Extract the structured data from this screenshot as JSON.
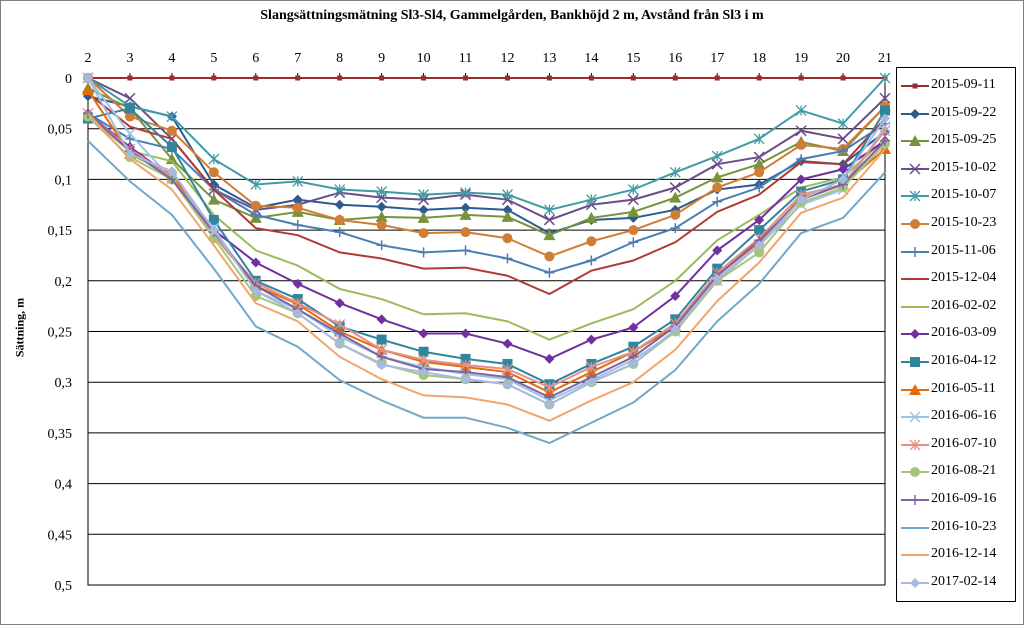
{
  "chart_data": {
    "type": "line",
    "title": "Slangsättningsmätning  Sl3-Sl4, Gammelgården,  Bankhöjd 2 m,  Avstånd från Sl3 i m",
    "xlabel": "",
    "ylabel": "Sättning, m",
    "x": [
      2,
      3,
      4,
      5,
      6,
      7,
      8,
      9,
      10,
      11,
      12,
      13,
      14,
      15,
      16,
      17,
      18,
      19,
      20,
      21
    ],
    "x_tick_labels": [
      "2",
      "3",
      "4",
      "5",
      "6",
      "7",
      "8",
      "9",
      "10",
      "11",
      "12",
      "13",
      "14",
      "15",
      "16",
      "17",
      "18",
      "19",
      "20",
      "21"
    ],
    "y_tick_labels": [
      "0",
      "0,05",
      "0,1",
      "0,15",
      "0,2",
      "0,25",
      "0,3",
      "0,35",
      "0,4",
      "0,45",
      "0,5"
    ],
    "ylim": [
      0,
      0.5
    ],
    "y_inverted": true,
    "x_axis_position": "top",
    "grid": "horizontal",
    "legend_position": "right",
    "series": [
      {
        "name": "2015-09-11",
        "color": "#9b2d2a",
        "marker": "square-small",
        "values": [
          0,
          0,
          0,
          0,
          0,
          0,
          0,
          0,
          0,
          0,
          0,
          0,
          0,
          0,
          0,
          0,
          0,
          0,
          0,
          0
        ]
      },
      {
        "name": "2015-09-22",
        "color": "#2e5b8f",
        "marker": "diamond",
        "values": [
          0.018,
          0.028,
          0.038,
          0.105,
          0.128,
          0.12,
          0.125,
          0.127,
          0.13,
          0.128,
          0.13,
          0.153,
          0.14,
          0.138,
          0.13,
          0.11,
          0.105,
          0.082,
          0.085,
          0.053
        ]
      },
      {
        "name": "2015-09-25",
        "color": "#77933c",
        "marker": "triangle",
        "values": [
          0.01,
          0.03,
          0.08,
          0.12,
          0.138,
          0.132,
          0.14,
          0.137,
          0.138,
          0.135,
          0.137,
          0.155,
          0.138,
          0.132,
          0.118,
          0.098,
          0.085,
          0.063,
          0.072,
          0.028
        ]
      },
      {
        "name": "2015-10-02",
        "color": "#6a4e8a",
        "marker": "x",
        "values": [
          0.0,
          0.02,
          0.06,
          0.11,
          0.13,
          0.125,
          0.113,
          0.118,
          0.12,
          0.115,
          0.12,
          0.14,
          0.125,
          0.12,
          0.108,
          0.085,
          0.078,
          0.052,
          0.06,
          0.02
        ]
      },
      {
        "name": "2015-10-07",
        "color": "#3f9ba6",
        "marker": "asterisk",
        "values": [
          0.0,
          0.028,
          0.038,
          0.08,
          0.105,
          0.102,
          0.11,
          0.112,
          0.115,
          0.113,
          0.115,
          0.13,
          0.12,
          0.11,
          0.093,
          0.077,
          0.06,
          0.032,
          0.045,
          0.0
        ]
      },
      {
        "name": "2015-10-23",
        "color": "#d07d35",
        "marker": "circle",
        "values": [
          0.0,
          0.038,
          0.052,
          0.093,
          0.126,
          0.128,
          0.14,
          0.145,
          0.153,
          0.152,
          0.158,
          0.176,
          0.161,
          0.15,
          0.135,
          0.108,
          0.093,
          0.066,
          0.07,
          0.028
        ]
      },
      {
        "name": "2015-11-06",
        "color": "#4a7eb5",
        "marker": "plus",
        "values": [
          0.035,
          0.06,
          0.07,
          0.11,
          0.135,
          0.145,
          0.152,
          0.165,
          0.172,
          0.17,
          0.178,
          0.192,
          0.18,
          0.162,
          0.148,
          0.122,
          0.108,
          0.08,
          0.072,
          0.045
        ]
      },
      {
        "name": "2015-12-04",
        "color": "#b03a36",
        "marker": "none",
        "values": [
          0.015,
          0.048,
          0.06,
          0.11,
          0.148,
          0.155,
          0.172,
          0.178,
          0.188,
          0.187,
          0.195,
          0.213,
          0.19,
          0.18,
          0.162,
          0.132,
          0.115,
          0.083,
          0.085,
          0.04
        ]
      },
      {
        "name": "2016-02-02",
        "color": "#9bbb59",
        "marker": "none",
        "values": [
          0.038,
          0.072,
          0.082,
          0.135,
          0.17,
          0.185,
          0.208,
          0.218,
          0.233,
          0.232,
          0.24,
          0.258,
          0.242,
          0.228,
          0.2,
          0.16,
          0.135,
          0.108,
          0.098,
          0.06
        ]
      },
      {
        "name": "2016-03-09",
        "color": "#7030a0",
        "marker": "diamond",
        "values": [
          0.035,
          0.068,
          0.098,
          0.15,
          0.182,
          0.203,
          0.222,
          0.238,
          0.252,
          0.252,
          0.262,
          0.277,
          0.258,
          0.246,
          0.215,
          0.17,
          0.14,
          0.1,
          0.09,
          0.062
        ]
      },
      {
        "name": "2016-04-12",
        "color": "#31859c",
        "marker": "square",
        "values": [
          0.04,
          0.03,
          0.068,
          0.14,
          0.2,
          0.218,
          0.245,
          0.258,
          0.27,
          0.277,
          0.282,
          0.302,
          0.282,
          0.265,
          0.238,
          0.188,
          0.15,
          0.112,
          0.1,
          0.032
        ]
      },
      {
        "name": "2016-05-11",
        "color": "#e36c0a",
        "marker": "triangle",
        "values": [
          0.012,
          0.075,
          0.095,
          0.155,
          0.205,
          0.223,
          0.25,
          0.268,
          0.28,
          0.285,
          0.29,
          0.31,
          0.29,
          0.27,
          0.245,
          0.195,
          0.162,
          0.118,
          0.105,
          0.07
        ]
      },
      {
        "name": "2016-06-16",
        "color": "#9dc3e6",
        "marker": "x",
        "values": [
          0.0,
          0.055,
          0.1,
          0.148,
          0.21,
          0.228,
          0.255,
          0.275,
          0.285,
          0.292,
          0.297,
          0.318,
          0.298,
          0.278,
          0.25,
          0.2,
          0.165,
          0.125,
          0.11,
          0.048
        ]
      },
      {
        "name": "2016-07-10",
        "color": "#e6908c",
        "marker": "asterisk",
        "values": [
          0.035,
          0.07,
          0.098,
          0.155,
          0.202,
          0.222,
          0.243,
          0.268,
          0.278,
          0.283,
          0.287,
          0.305,
          0.285,
          0.27,
          0.242,
          0.192,
          0.158,
          0.115,
          0.105,
          0.052
        ]
      },
      {
        "name": "2016-08-21",
        "color": "#a5c67a",
        "marker": "circle",
        "values": [
          0.038,
          0.078,
          0.1,
          0.158,
          0.215,
          0.232,
          0.262,
          0.282,
          0.293,
          0.297,
          0.302,
          0.322,
          0.3,
          0.282,
          0.25,
          0.2,
          0.172,
          0.123,
          0.108,
          0.065
        ]
      },
      {
        "name": "2016-09-16",
        "color": "#8064a2",
        "marker": "plus",
        "values": [
          0.035,
          0.072,
          0.1,
          0.152,
          0.205,
          0.228,
          0.252,
          0.275,
          0.287,
          0.29,
          0.295,
          0.315,
          0.295,
          0.275,
          0.245,
          0.195,
          0.16,
          0.12,
          0.105,
          0.062
        ]
      },
      {
        "name": "2016-10-23",
        "color": "#71a8c9",
        "marker": "none",
        "values": [
          0.062,
          0.102,
          0.135,
          0.188,
          0.245,
          0.265,
          0.298,
          0.318,
          0.335,
          0.335,
          0.345,
          0.36,
          0.34,
          0.32,
          0.288,
          0.24,
          0.203,
          0.153,
          0.138,
          0.093
        ]
      },
      {
        "name": "2016-12-14",
        "color": "#f2a56a",
        "marker": "none",
        "values": [
          0.035,
          0.08,
          0.11,
          0.165,
          0.222,
          0.24,
          0.275,
          0.297,
          0.313,
          0.315,
          0.322,
          0.338,
          0.318,
          0.3,
          0.268,
          0.22,
          0.182,
          0.133,
          0.118,
          0.07
        ]
      },
      {
        "name": "2017-02-14",
        "color": "#a6b9e0",
        "marker": "diamond",
        "values": [
          0.0,
          0.075,
          0.092,
          0.15,
          0.21,
          0.232,
          0.262,
          0.283,
          0.29,
          0.297,
          0.302,
          0.322,
          0.3,
          0.282,
          0.248,
          0.198,
          0.165,
          0.12,
          0.1,
          0.04
        ]
      }
    ]
  }
}
